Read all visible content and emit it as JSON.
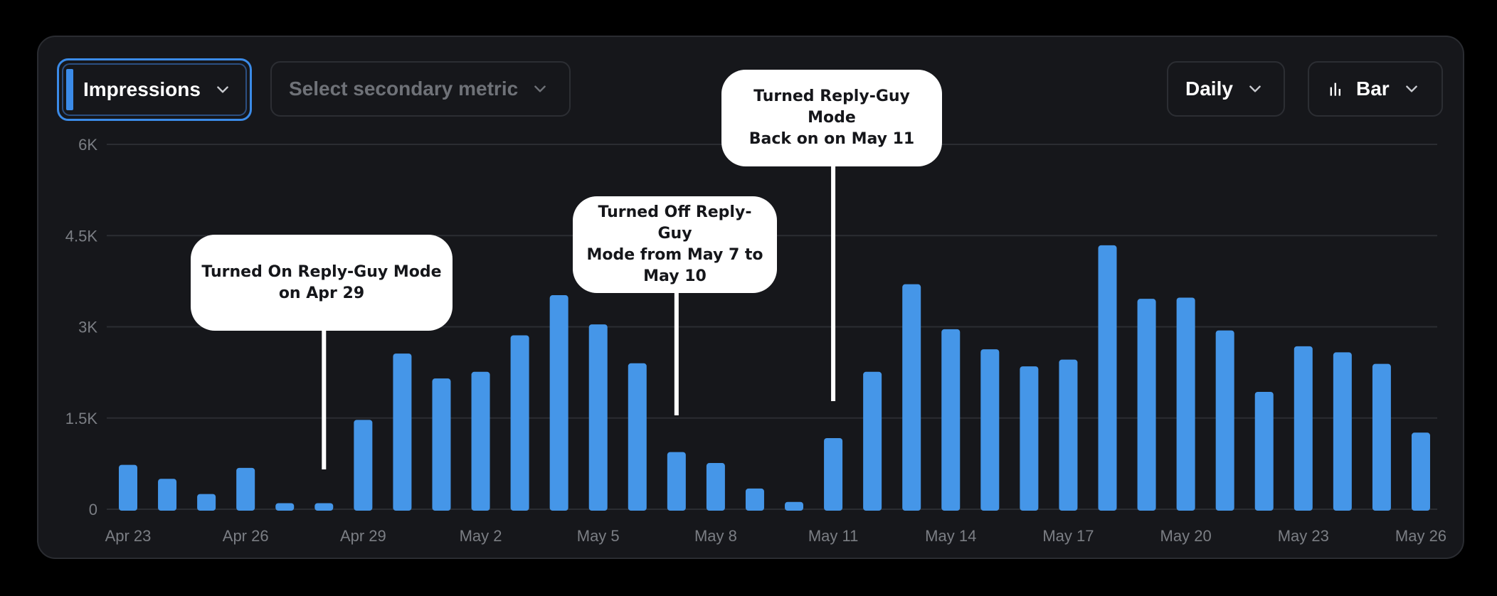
{
  "controls": {
    "primary_metric": "Impressions",
    "secondary_metric_placeholder": "Select secondary metric",
    "interval": "Daily",
    "chart_type": "Bar"
  },
  "colors": {
    "background": "#000000",
    "card": "#16171b",
    "bar": "#4596e8",
    "accent": "#3b8be8",
    "axis_text": "#7b7e84",
    "gridline": "#2b2d32",
    "callout": "#ffffff"
  },
  "icons": {
    "dropdown": "chevron-down-icon",
    "bar_chart": "bar-chart-icon"
  },
  "annotations": [
    {
      "text_lines": [
        "Turned On Reply-Guy Mode",
        "on Apr 29"
      ],
      "date": "Apr 28"
    },
    {
      "text_lines": [
        "Turned Off Reply-Guy",
        "Mode from May 7 to",
        "May 10"
      ],
      "date": "May 7"
    },
    {
      "text_lines": [
        "Turned Reply-Guy Mode",
        "Back on on May 11"
      ],
      "date": "May 11"
    }
  ],
  "chart_data": {
    "type": "bar",
    "title": "",
    "xlabel": "",
    "ylabel": "",
    "ylim": [
      0,
      6000
    ],
    "yticks": [
      {
        "value": 0,
        "label": "0"
      },
      {
        "value": 1500,
        "label": "1.5K"
      },
      {
        "value": 3000,
        "label": "3K"
      },
      {
        "value": 4500,
        "label": "4.5K"
      },
      {
        "value": 6000,
        "label": "6K"
      }
    ],
    "xtick_labels": [
      "Apr 23",
      "Apr 26",
      "Apr 29",
      "May 2",
      "May 5",
      "May 8",
      "May 11",
      "May 14",
      "May 17",
      "May 20",
      "May 23",
      "May 26"
    ],
    "xtick_every": 3,
    "grid": true,
    "legend": "none",
    "categories": [
      "Apr 23",
      "Apr 24",
      "Apr 25",
      "Apr 26",
      "Apr 27",
      "Apr 28",
      "Apr 29",
      "Apr 30",
      "May 1",
      "May 2",
      "May 3",
      "May 4",
      "May 5",
      "May 6",
      "May 7",
      "May 8",
      "May 9",
      "May 10",
      "May 11",
      "May 12",
      "May 13",
      "May 14",
      "May 15",
      "May 16",
      "May 17",
      "May 18",
      "May 19",
      "May 20",
      "May 21",
      "May 22",
      "May 23",
      "May 24",
      "May 25",
      "May 26"
    ],
    "series": [
      {
        "values": [
          730,
          500,
          250,
          680,
          100,
          100,
          1470,
          2560,
          2150,
          2260,
          2860,
          3520,
          3040,
          2400,
          940,
          760,
          340,
          120,
          1170,
          2260,
          3700,
          2960,
          2630,
          2350,
          2460,
          4340,
          3460,
          3480,
          2940,
          1930,
          2680,
          2580,
          2390,
          1260
        ]
      }
    ]
  }
}
